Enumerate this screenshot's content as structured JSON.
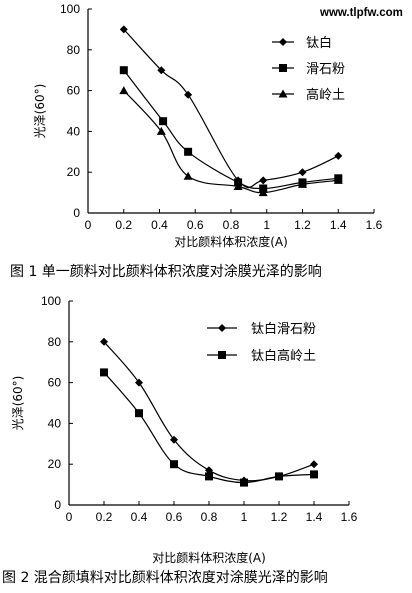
{
  "watermark": "www.tlpfw.com",
  "chart_data": [
    {
      "type": "line",
      "caption": "图 1   单一颜料对比颜料体积浓度对涂膜光泽的影响",
      "xlabel": "对比颜料体积浓度(A)",
      "ylabel": "光泽(60°)",
      "xlim": [
        0,
        1.6
      ],
      "ylim": [
        0,
        100
      ],
      "xticks": [
        "0",
        "0.2",
        "0.4",
        "0.6",
        "0.8",
        "1",
        "1.2",
        "1.4",
        "1.6"
      ],
      "yticks": [
        "0",
        "20",
        "40",
        "60",
        "80",
        "100"
      ],
      "grid": false,
      "legend_position": "top-right",
      "series": [
        {
          "name": "钛白",
          "marker": "diamond",
          "x": [
            0.2,
            0.41,
            0.56,
            0.84,
            0.98,
            1.2,
            1.4
          ],
          "y": [
            90,
            70,
            58,
            16,
            16,
            20,
            28
          ]
        },
        {
          "name": "滑石粉",
          "marker": "square",
          "x": [
            0.2,
            0.42,
            0.56,
            0.84,
            0.98,
            1.2,
            1.4
          ],
          "y": [
            70,
            45,
            30,
            15,
            12,
            15,
            17
          ]
        },
        {
          "name": "高岭土",
          "marker": "triangle",
          "x": [
            0.2,
            0.41,
            0.56,
            0.84,
            0.98,
            1.2,
            1.4
          ],
          "y": [
            60,
            40,
            18,
            13,
            10,
            14,
            16
          ]
        }
      ]
    },
    {
      "type": "line",
      "caption": "图 2   混合颜填料对比颜料体积浓度对涂膜光泽的影响",
      "xlabel": "对比颜料体积浓度(A)",
      "ylabel": "光泽(60°)",
      "xlim": [
        0,
        1.6
      ],
      "ylim": [
        0,
        100
      ],
      "xticks": [
        "0",
        "0.2",
        "0.4",
        "0.6",
        "0.8",
        "1",
        "1.2",
        "1.4",
        "1.6"
      ],
      "yticks": [
        "0",
        "20",
        "40",
        "60",
        "80",
        "100"
      ],
      "grid": false,
      "legend_position": "top-right",
      "series": [
        {
          "name": "钛白滑石粉",
          "marker": "diamond",
          "x": [
            0.2,
            0.4,
            0.6,
            0.8,
            1.0,
            1.2,
            1.4
          ],
          "y": [
            80,
            60,
            32,
            17,
            12,
            14,
            20
          ]
        },
        {
          "name": "钛白高岭土",
          "marker": "square",
          "x": [
            0.2,
            0.4,
            0.6,
            0.8,
            1.0,
            1.2,
            1.4
          ],
          "y": [
            65,
            45,
            20,
            14,
            11,
            14,
            15
          ]
        }
      ]
    }
  ]
}
